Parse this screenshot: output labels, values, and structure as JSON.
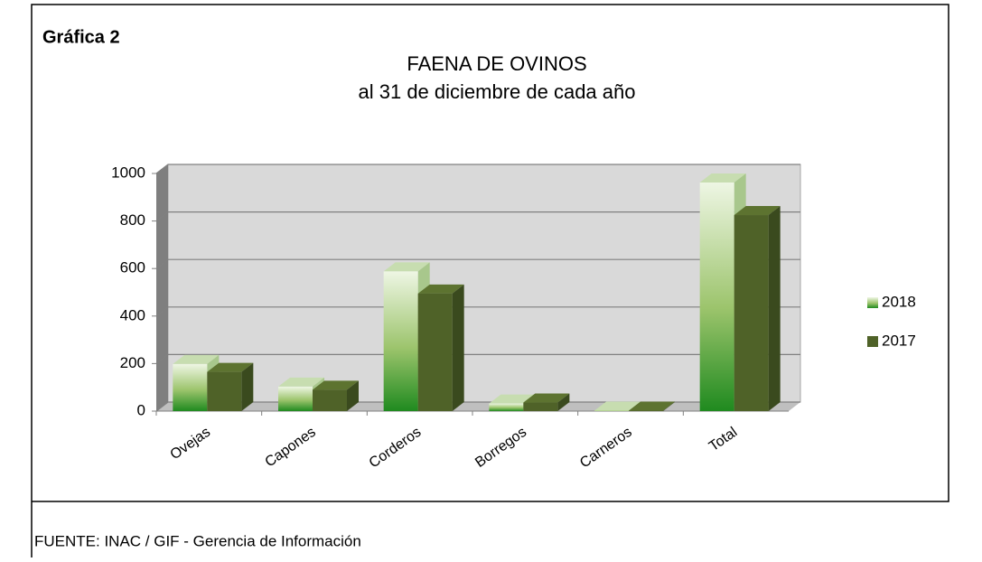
{
  "label": "Gráfica 2",
  "source": "FUENTE: INAC / GIF - Gerencia de Información",
  "chart_data": {
    "type": "bar3d",
    "title": "FAENA DE OVINOS",
    "subtitle": "al 31 de diciembre de cada año",
    "categories": [
      "Ovejas",
      "Capones",
      "Corderos",
      "Borregos",
      "Carneros",
      "Total"
    ],
    "series": [
      {
        "name": "2018",
        "color": "#1f8a1f",
        "values": [
          198,
          103,
          588,
          32,
          2,
          962
        ]
      },
      {
        "name": "2017",
        "color": "#4f6228",
        "values": [
          165,
          90,
          495,
          36,
          2,
          825
        ]
      }
    ],
    "ylim": [
      0,
      1000
    ],
    "yticks": [
      0,
      200,
      400,
      600,
      800,
      1000
    ],
    "grid": true,
    "legend": "right"
  }
}
